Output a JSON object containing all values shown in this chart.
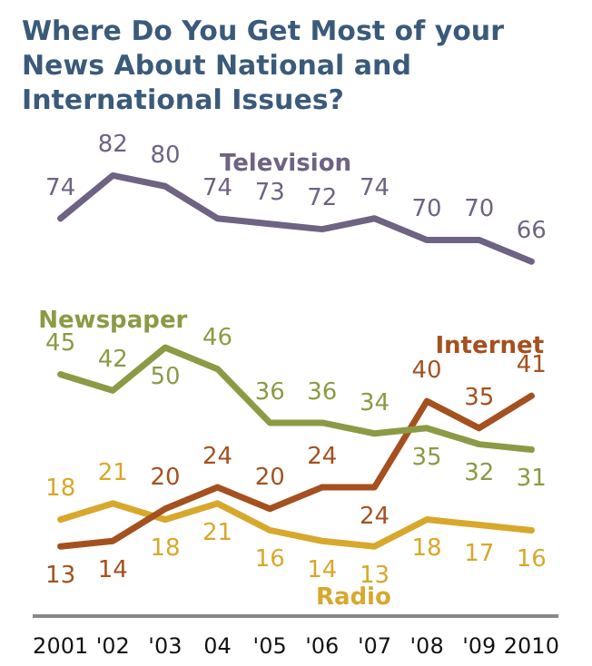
{
  "chart_data": {
    "type": "line",
    "title": "Where Do You Get Most of your News About National and International Issues?",
    "categories": [
      "2001",
      "'02",
      "'03",
      "04",
      "'05",
      "'06",
      "'07",
      "'08",
      "'09",
      "2010"
    ],
    "series": [
      {
        "name": "Television",
        "color": "#6e6382",
        "values": [
          74,
          82,
          80,
          74,
          73,
          72,
          74,
          70,
          70,
          66
        ]
      },
      {
        "name": "Newspaper",
        "color": "#8c9a45",
        "values": [
          45,
          42,
          50,
          46,
          36,
          36,
          34,
          35,
          32,
          31
        ]
      },
      {
        "name": "Internet",
        "color": "#a4511f",
        "values": [
          13,
          14,
          20,
          24,
          20,
          24,
          24,
          40,
          35,
          41
        ]
      },
      {
        "name": "Radio",
        "color": "#d8a82c",
        "values": [
          18,
          21,
          18,
          21,
          16,
          14,
          13,
          18,
          17,
          16
        ]
      }
    ],
    "data_labels": true,
    "legend": false,
    "grid": false,
    "marker": "none",
    "line_style": "solid"
  }
}
